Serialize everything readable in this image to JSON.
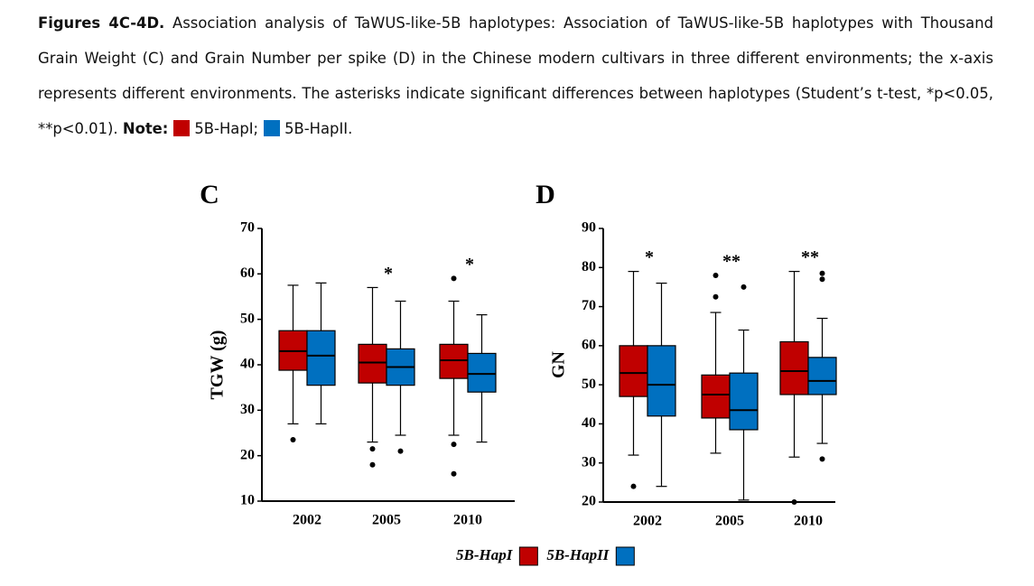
{
  "caption": {
    "label": "Figures 4C-4D.",
    "text": "Association analysis of TaWUS-like-5B haplotypes: Association of TaWUS-like-5B haplotypes with Thousand Grain Weight (C) and Grain Number per spike (D) in the Chinese modern cultivars in three different environments; the x-axis represents different environments. The asterisks indicate significant differences between haplotypes (Student’s t-test, *p<0.05, **p<0.01).",
    "note_label": "Note:",
    "items": [
      "5B-HapI;",
      "5B-HapII."
    ]
  },
  "chart_data": [
    {
      "type": "box",
      "panel": "C",
      "ylabel": "TGW (g)",
      "categories": [
        "2002",
        "2005",
        "2010"
      ],
      "ylim": [
        10,
        70
      ],
      "yticks": [
        10,
        20,
        30,
        40,
        50,
        60,
        70
      ],
      "annotations": [
        null,
        "*",
        "*"
      ],
      "series": [
        {
          "name": "5B-HapI",
          "color": "#c00000",
          "boxes": [
            {
              "low": 27,
              "q1": 38.8,
              "median": 43,
              "q3": 47.5,
              "high": 57.5,
              "outliers": [
                23.5
              ]
            },
            {
              "low": 23,
              "q1": 36,
              "median": 40.5,
              "q3": 44.5,
              "high": 57,
              "outliers": [
                21.5,
                18
              ]
            },
            {
              "low": 24.5,
              "q1": 37,
              "median": 41,
              "q3": 44.5,
              "high": 54,
              "outliers": [
                59,
                22.5,
                16
              ]
            }
          ]
        },
        {
          "name": "5B-HapII",
          "color": "#0070c0",
          "boxes": [
            {
              "low": 27,
              "q1": 35.5,
              "median": 42,
              "q3": 47.5,
              "high": 58,
              "outliers": []
            },
            {
              "low": 24.5,
              "q1": 35.5,
              "median": 39.5,
              "q3": 43.5,
              "high": 54,
              "outliers": [
                21
              ]
            },
            {
              "low": 23,
              "q1": 34,
              "median": 38,
              "q3": 42.5,
              "high": 51,
              "outliers": []
            }
          ]
        }
      ]
    },
    {
      "type": "box",
      "panel": "D",
      "ylabel": "GN",
      "categories": [
        "2002",
        "2005",
        "2010"
      ],
      "ylim": [
        20,
        90
      ],
      "yticks": [
        20,
        30,
        40,
        50,
        60,
        70,
        80,
        90
      ],
      "annotations": [
        "*",
        "**",
        "**"
      ],
      "series": [
        {
          "color": "#c00000",
          "boxes": [
            {
              "low": 32,
              "q1": 47,
              "median": 53,
              "q3": 60,
              "high": 79,
              "outliers": [
                24
              ]
            },
            {
              "low": 32.5,
              "q1": 41.5,
              "median": 47.5,
              "q3": 52.5,
              "high": 68.5,
              "outliers": [
                78,
                72.5
              ]
            },
            {
              "low": 31.5,
              "q1": 47.5,
              "median": 53.5,
              "q3": 61,
              "high": 79,
              "outliers": [
                20
              ]
            }
          ]
        },
        {
          "color": "#0070c0",
          "boxes": [
            {
              "low": 24,
              "q1": 42,
              "median": 50,
              "q3": 60,
              "high": 76,
              "outliers": []
            },
            {
              "low": 20.5,
              "q1": 38.5,
              "median": 43.5,
              "q3": 53,
              "high": 64,
              "outliers": [
                75
              ]
            },
            {
              "low": 35,
              "q1": 47.5,
              "median": 51,
              "q3": 57,
              "high": 67,
              "outliers": [
                78.5,
                77,
                31
              ]
            }
          ]
        }
      ]
    }
  ]
}
